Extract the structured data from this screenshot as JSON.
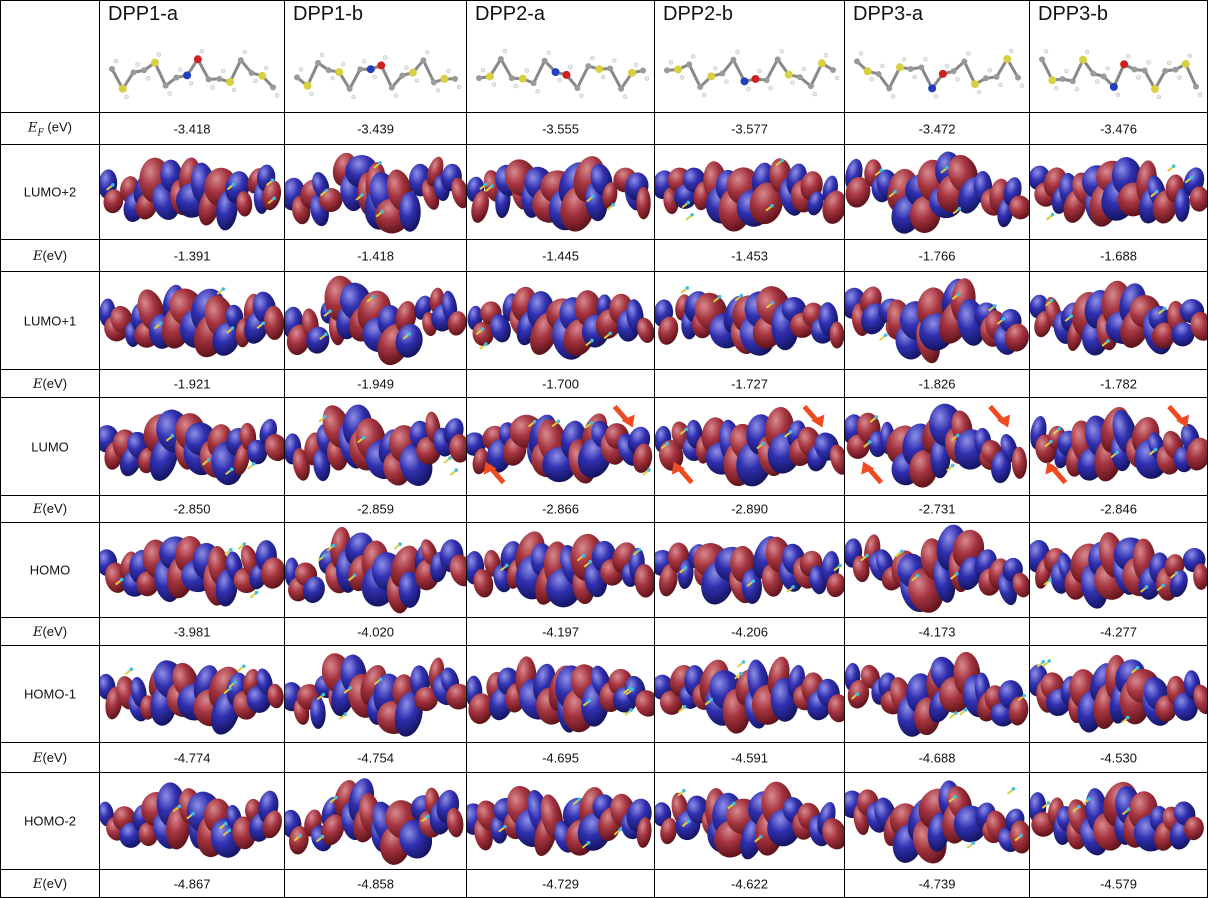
{
  "table": {
    "columns": [
      "DPP1-a",
      "DPP1-b",
      "DPP2-a",
      "DPP2-b",
      "DPP3-a",
      "DPP3-b"
    ],
    "rows": [
      {
        "type": "energy",
        "symbol": "E",
        "subscript": "F",
        "unit": "(eV)",
        "values": [
          "-3.418",
          "-3.439",
          "-3.555",
          "-3.577",
          "-3.472",
          "-3.476"
        ]
      },
      {
        "type": "orbital",
        "label": "LUMO+2"
      },
      {
        "type": "energy",
        "symbol": "E",
        "unit": "(eV)",
        "values": [
          "-1.391",
          "-1.418",
          "-1.445",
          "-1.453",
          "-1.766",
          "-1.688"
        ]
      },
      {
        "type": "orbital",
        "label": "LUMO+1"
      },
      {
        "type": "energy",
        "symbol": "E",
        "unit": "(eV)",
        "values": [
          "-1.921",
          "-1.949",
          "-1.700",
          "-1.727",
          "-1.826",
          "-1.782"
        ]
      },
      {
        "type": "orbital",
        "label": "LUMO"
      },
      {
        "type": "energy",
        "symbol": "E",
        "unit": "(eV)",
        "values": [
          "-2.850",
          "-2.859",
          "-2.866",
          "-2.890",
          "-2.731",
          "-2.846"
        ]
      },
      {
        "type": "orbital",
        "label": "HOMO"
      },
      {
        "type": "energy",
        "symbol": "E",
        "unit": "(eV)",
        "values": [
          "-3.981",
          "-4.020",
          "-4.197",
          "-4.206",
          "-4.173",
          "-4.277"
        ]
      },
      {
        "type": "orbital",
        "label": "HOMO-1"
      },
      {
        "type": "energy",
        "symbol": "E",
        "unit": "(eV)",
        "values": [
          "-4.774",
          "-4.754",
          "-4.695",
          "-4.591",
          "-4.688",
          "-4.530"
        ]
      },
      {
        "type": "orbital",
        "label": "HOMO-2"
      },
      {
        "type": "energy",
        "symbol": "E",
        "unit": "(eV)",
        "values": [
          "-4.867",
          "-4.858",
          "-4.729",
          "-4.622",
          "-4.739",
          "-4.579"
        ]
      }
    ]
  }
}
